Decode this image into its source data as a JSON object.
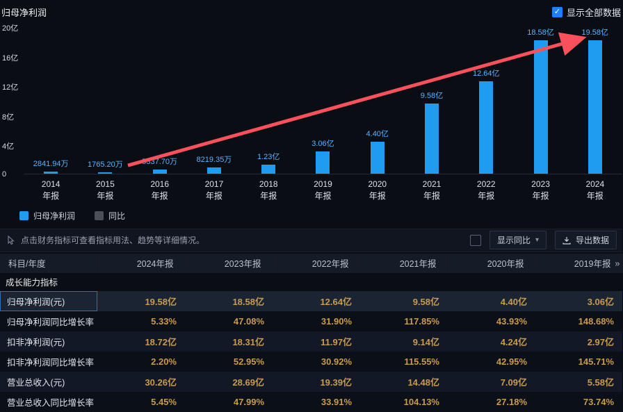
{
  "header": {
    "title": "归母净利润",
    "show_all_label": "显示全部数据",
    "show_all_checked": true
  },
  "chart_data": {
    "type": "bar",
    "title": "归母净利润",
    "categories": [
      "2014年报",
      "2015年报",
      "2016年报",
      "2017年报",
      "2018年报",
      "2019年报",
      "2020年报",
      "2021年报",
      "2022年报",
      "2023年报",
      "2024年报"
    ],
    "values": [
      0.2842,
      0.1765,
      0.5338,
      0.8219,
      1.23,
      3.06,
      4.4,
      9.58,
      12.64,
      18.58,
      19.58
    ],
    "value_labels": [
      "2841.94万",
      "1765.20万",
      "5337.70万",
      "8219.35万",
      "1.23亿",
      "3.06亿",
      "4.40亿",
      "9.58亿",
      "12.64亿",
      "18.58亿",
      "19.58亿"
    ],
    "unit": "亿",
    "ylim": [
      0,
      20
    ],
    "yticks": [
      "20亿",
      "16亿",
      "12亿",
      "8亿",
      "4亿",
      "0"
    ],
    "legend": [
      {
        "label": "归母净利润",
        "color": "#1f9bf0"
      },
      {
        "label": "同比",
        "color": "#4a4f58"
      }
    ],
    "annotation": "red-upward-trend-arrow",
    "bar_color": "#1f9bf0",
    "arrow_color": "#f8515c"
  },
  "toolbar": {
    "tip": "点击财务指标可查看指标用法、趋势等详细情况。",
    "show_yoy_label": "显示同比",
    "export_label": "导出数据"
  },
  "table": {
    "columns": [
      "科目/年度",
      "2024年报",
      "2023年报",
      "2022年报",
      "2021年报",
      "2020年报",
      "2019年报"
    ],
    "more_indicator": "»",
    "section": "成长能力指标",
    "rows": [
      {
        "label": "归母净利润(元)",
        "selected": true,
        "values": [
          "19.58亿",
          "18.58亿",
          "12.64亿",
          "9.58亿",
          "4.40亿",
          "3.06亿"
        ]
      },
      {
        "label": "归母净利润同比增长率",
        "selected": false,
        "values": [
          "5.33%",
          "47.08%",
          "31.90%",
          "117.85%",
          "43.93%",
          "148.68%"
        ]
      },
      {
        "label": "扣非净利润(元)",
        "selected": false,
        "values": [
          "18.72亿",
          "18.31亿",
          "11.97亿",
          "9.14亿",
          "4.24亿",
          "2.97亿"
        ]
      },
      {
        "label": "扣非净利润同比增长率",
        "selected": false,
        "values": [
          "2.20%",
          "52.95%",
          "30.92%",
          "115.55%",
          "42.95%",
          "145.71%"
        ]
      },
      {
        "label": "营业总收入(元)",
        "selected": false,
        "values": [
          "30.26亿",
          "28.69亿",
          "19.39亿",
          "14.48亿",
          "7.09亿",
          "5.58亿"
        ]
      },
      {
        "label": "营业总收入同比增长率",
        "selected": false,
        "values": [
          "5.45%",
          "47.99%",
          "33.91%",
          "104.13%",
          "27.18%",
          "73.74%"
        ]
      }
    ]
  },
  "colors": {
    "background": "#0a0d14",
    "bar": "#1f9bf0",
    "value_label": "#58b6ff",
    "arrow": "#f8515c",
    "gold_value": "#c99b4e",
    "checkbox_accent": "#1e80ff"
  }
}
